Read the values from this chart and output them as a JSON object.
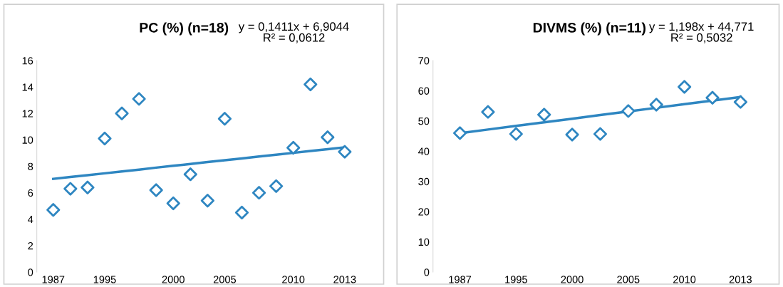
{
  "chart_data": [
    {
      "type": "scatter",
      "title": "PC (%) (n=18)",
      "annotations": [
        "y = 0,1411x + 6,9044\nR² = 0,0612"
      ],
      "grid": false,
      "categories": [
        "1987",
        null,
        null,
        "1995",
        null,
        null,
        null,
        "2000",
        null,
        null,
        "2005",
        null,
        null,
        null,
        "2010",
        null,
        null,
        "2013"
      ],
      "ylim": [
        0,
        16
      ],
      "yticks": [
        0,
        2,
        4,
        6,
        8,
        10,
        12,
        14,
        16
      ],
      "series": [
        {
          "color": "#2e86c1",
          "marker": "diamond",
          "values": [
            4.7,
            6.3,
            6.4,
            10.1,
            12.0,
            13.1,
            6.2,
            5.2,
            7.4,
            5.4,
            11.6,
            4.5,
            6.0,
            6.5,
            9.4,
            14.2,
            10.2,
            9.1
          ]
        },
        {
          "type": "line",
          "color": "#2e86c1",
          "marker": "none",
          "values": [
            7.05,
            7.19,
            7.33,
            7.47,
            7.61,
            7.75,
            7.9,
            8.04,
            8.18,
            8.32,
            8.46,
            8.6,
            8.74,
            8.88,
            9.02,
            9.16,
            9.3,
            9.44
          ]
        }
      ]
    },
    {
      "type": "scatter",
      "title": "DIVMS (%) (n=11)",
      "annotations": [
        "y = 1,198x + 44,771\nR² = 0,5032"
      ],
      "grid": false,
      "categories": [
        "1987",
        null,
        "1995",
        null,
        "2000",
        null,
        "2005",
        null,
        "2010",
        null,
        "2013"
      ],
      "ylim": [
        0,
        70
      ],
      "yticks": [
        0,
        10,
        20,
        30,
        40,
        50,
        60,
        70
      ],
      "series": [
        {
          "color": "#2e86c1",
          "marker": "diamond",
          "values": [
            46.0,
            53.0,
            45.7,
            52.1,
            45.5,
            45.7,
            53.3,
            55.4,
            61.3,
            57.7,
            56.3
          ]
        },
        {
          "type": "line",
          "color": "#2e86c1",
          "marker": "none",
          "values": [
            45.97,
            47.17,
            48.37,
            49.57,
            50.76,
            51.96,
            53.16,
            54.36,
            55.56,
            56.76,
            57.95
          ]
        }
      ]
    }
  ]
}
